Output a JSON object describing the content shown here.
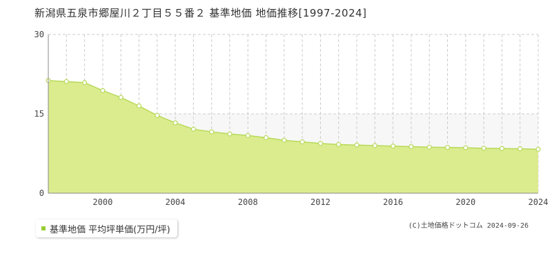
{
  "chart_data": {
    "type": "area",
    "title": "新潟県五泉市郷屋川２丁目５５番２ 基準地価 地価推移[1997-2024]",
    "x": [
      1997,
      1998,
      1999,
      2000,
      2001,
      2002,
      2003,
      2004,
      2005,
      2006,
      2007,
      2008,
      2009,
      2010,
      2011,
      2012,
      2013,
      2014,
      2015,
      2016,
      2017,
      2018,
      2019,
      2020,
      2021,
      2022,
      2023,
      2024
    ],
    "series": [
      {
        "name": "基準地価 平均坪単価(万円/坪)",
        "values": [
          21.3,
          21.1,
          20.9,
          19.4,
          18.1,
          16.5,
          14.7,
          13.3,
          12.1,
          11.6,
          11.2,
          10.9,
          10.5,
          10.0,
          9.7,
          9.4,
          9.2,
          9.1,
          9.0,
          8.9,
          8.8,
          8.7,
          8.65,
          8.6,
          8.5,
          8.45,
          8.4,
          8.3
        ]
      }
    ],
    "xlim": [
      1997,
      2024
    ],
    "ylim": [
      0,
      30
    ],
    "x_ticks": [
      2000,
      2004,
      2008,
      2012,
      2016,
      2020,
      2024
    ],
    "y_ticks": [
      0,
      15,
      30
    ],
    "xlabel": "",
    "ylabel": "",
    "grid": true,
    "legend_position": "bottom-left",
    "colors": {
      "area_fill": "#dbec8f",
      "line": "#b7d957",
      "marker_fill": "#ffffff",
      "legend_swatch": "#99cc33",
      "grid": "#cccccc"
    }
  },
  "credit": "(C)土地価格ドットコム 2024-09-26"
}
